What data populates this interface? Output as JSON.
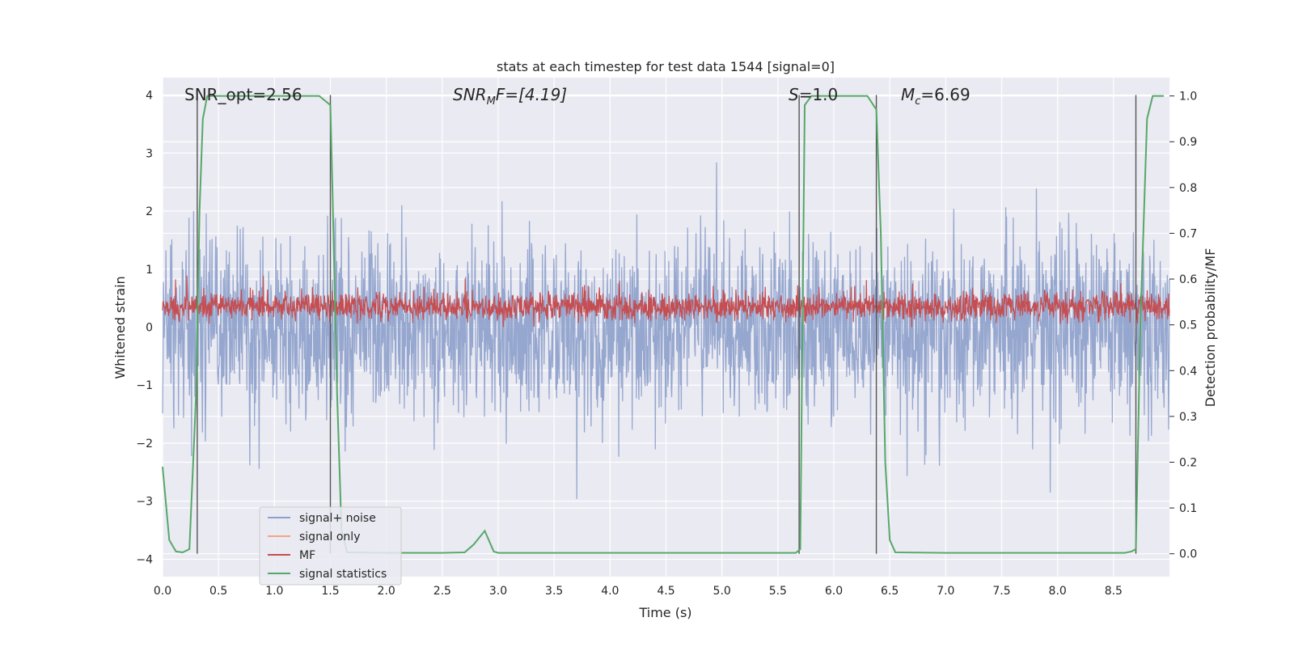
{
  "chart_data": {
    "type": "line",
    "title": "stats at each timestep for test data 1544 [signal=0]",
    "xlabel": "Time (s)",
    "ylabel": "Whitened strain",
    "y2label": "Detection probability/MF",
    "xlim": [
      0,
      9.0
    ],
    "ylim": [
      -4.3,
      4.3
    ],
    "y2lim": [
      -0.05,
      1.04
    ],
    "x_ticks": [
      0.0,
      0.5,
      1.0,
      1.5,
      2.0,
      2.5,
      3.0,
      3.5,
      4.0,
      4.5,
      5.0,
      5.5,
      6.0,
      6.5,
      7.0,
      7.5,
      8.0,
      8.5
    ],
    "y_ticks": [
      4,
      3,
      2,
      1,
      0,
      -1,
      -2,
      -3,
      -4
    ],
    "y_tick_labels": [
      "4",
      "3",
      "2",
      "1",
      "0",
      "−1",
      "−2",
      "−3",
      "−4"
    ],
    "y2_ticks": [
      1.0,
      0.9,
      0.8,
      0.7,
      0.6,
      0.5,
      0.4,
      0.3,
      0.2,
      0.1,
      0.0
    ],
    "y2_tick_labels": [
      "1.0",
      "0.9",
      "0.8",
      "0.7",
      "0.6",
      "0.5",
      "0.4",
      "0.3",
      "0.2",
      "0.1",
      "0.0"
    ],
    "grid": true,
    "legend_position": "lower-left",
    "series": [
      {
        "name": "signal+ noise",
        "color": "#8da0cb",
        "style": "dense noise, roughly -3.5 to 3.8",
        "amplitude": 2.6
      },
      {
        "name": "signal only",
        "color": "#f4a582",
        "values": []
      },
      {
        "name": "MF",
        "color": "#c44e52",
        "style": "dense noise between ~0.0 and ~1.0",
        "center": 0.35,
        "amplitude": 0.4
      },
      {
        "name": "signal statistics",
        "color": "#55a868",
        "axis": "right",
        "x": [
          0.0,
          0.06,
          0.12,
          0.18,
          0.24,
          0.3,
          0.33,
          0.36,
          0.4,
          0.5,
          1.0,
          1.4,
          1.5,
          1.52,
          1.56,
          1.6,
          1.65,
          2.0,
          2.5,
          2.7,
          2.78,
          2.88,
          2.96,
          3.0,
          3.5,
          4.0,
          5.0,
          5.5,
          5.66,
          5.7,
          5.74,
          5.8,
          6.0,
          6.3,
          6.38,
          6.42,
          6.46,
          6.5,
          6.55,
          7.0,
          8.0,
          8.6,
          8.66,
          8.7,
          8.74,
          8.8,
          8.85,
          8.95
        ],
        "y": [
          0.19,
          0.03,
          0.005,
          0.003,
          0.01,
          0.35,
          0.75,
          0.95,
          1.0,
          1.0,
          1.0,
          1.0,
          0.98,
          0.78,
          0.35,
          0.05,
          0.003,
          0.002,
          0.002,
          0.003,
          0.02,
          0.05,
          0.005,
          0.002,
          0.002,
          0.002,
          0.002,
          0.002,
          0.002,
          0.01,
          0.98,
          1.0,
          1.0,
          1.0,
          0.97,
          0.7,
          0.2,
          0.03,
          0.003,
          0.002,
          0.002,
          0.002,
          0.005,
          0.01,
          0.5,
          0.95,
          1.0,
          1.0
        ]
      }
    ],
    "vertical_lines_x": [
      0.31,
      1.5,
      5.69,
      6.38,
      8.7
    ],
    "annotations": [
      {
        "id": "snr_opt",
        "text": "SNR_opt=2.56"
      },
      {
        "id": "snr_mf",
        "text": "SNRₘF=[4.19]"
      },
      {
        "id": "s",
        "text": "S=1.0"
      },
      {
        "id": "mc",
        "text": "Mⱼ=6.69"
      }
    ],
    "annotation_parts": {
      "snr_mf": {
        "main": "SNR",
        "sub": "M",
        "rest": "F=[4.19]"
      },
      "s": {
        "main": "S",
        "rest": "=1.0"
      },
      "mc": {
        "main": "M",
        "sub": "c",
        "rest": "=6.69"
      }
    },
    "colors": {
      "plot_bg": "#eaeaf2",
      "grid": "#ffffff",
      "vline": "#555555"
    }
  }
}
